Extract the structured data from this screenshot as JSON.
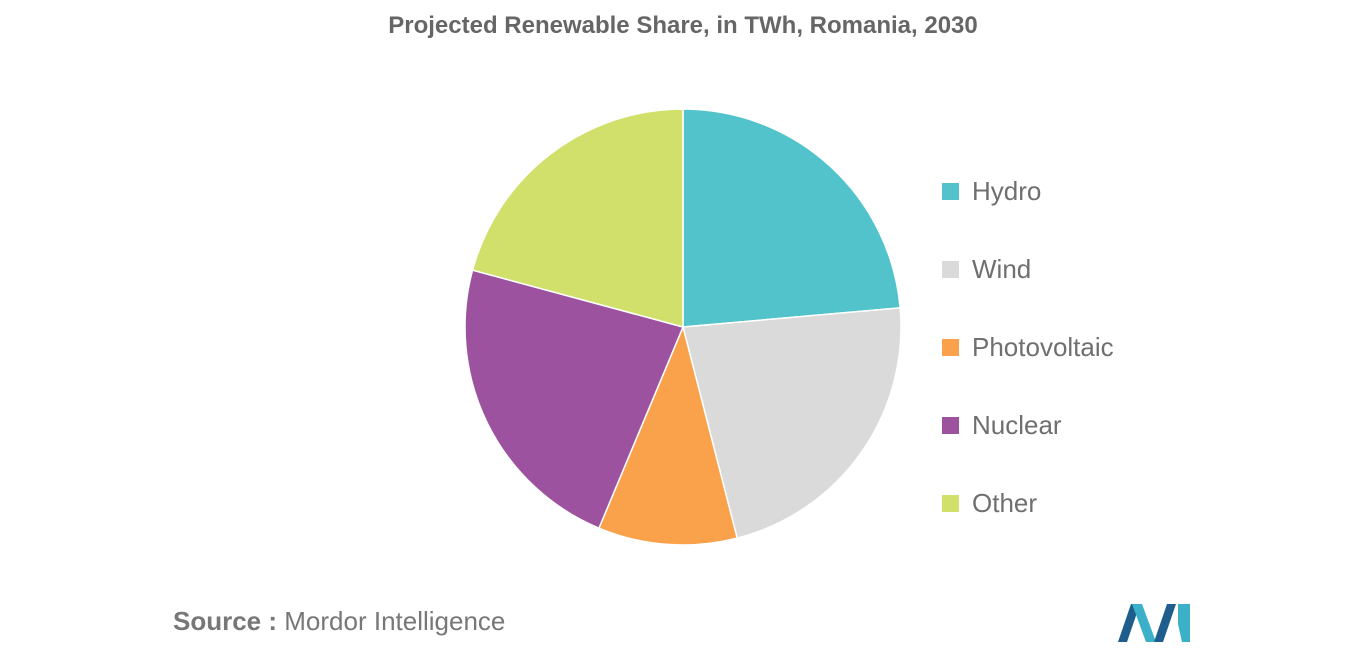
{
  "chart_data": {
    "type": "pie",
    "title": "Projected Renewable Share, in TWh, Romania, 2030",
    "start_angle_deg": 0,
    "direction": "clockwise",
    "legend_position": "right",
    "series": [
      {
        "name": "Hydro",
        "value": 23.6,
        "color": "#52C3CB"
      },
      {
        "name": "Wind",
        "value": 22.4,
        "color": "#DADADA"
      },
      {
        "name": "Photovoltaic",
        "value": 10.3,
        "color": "#FAA24B"
      },
      {
        "name": "Nuclear",
        "value": 22.9,
        "color": "#9C529F"
      },
      {
        "name": "Other",
        "value": 20.8,
        "color": "#D1E06B"
      }
    ]
  },
  "source": {
    "key": "Source :",
    "value": "Mordor Intelligence"
  },
  "logo": {
    "icon": "mordor-intelligence-logo-icon",
    "colors": [
      "#1F5E8C",
      "#3AB1C9"
    ]
  }
}
